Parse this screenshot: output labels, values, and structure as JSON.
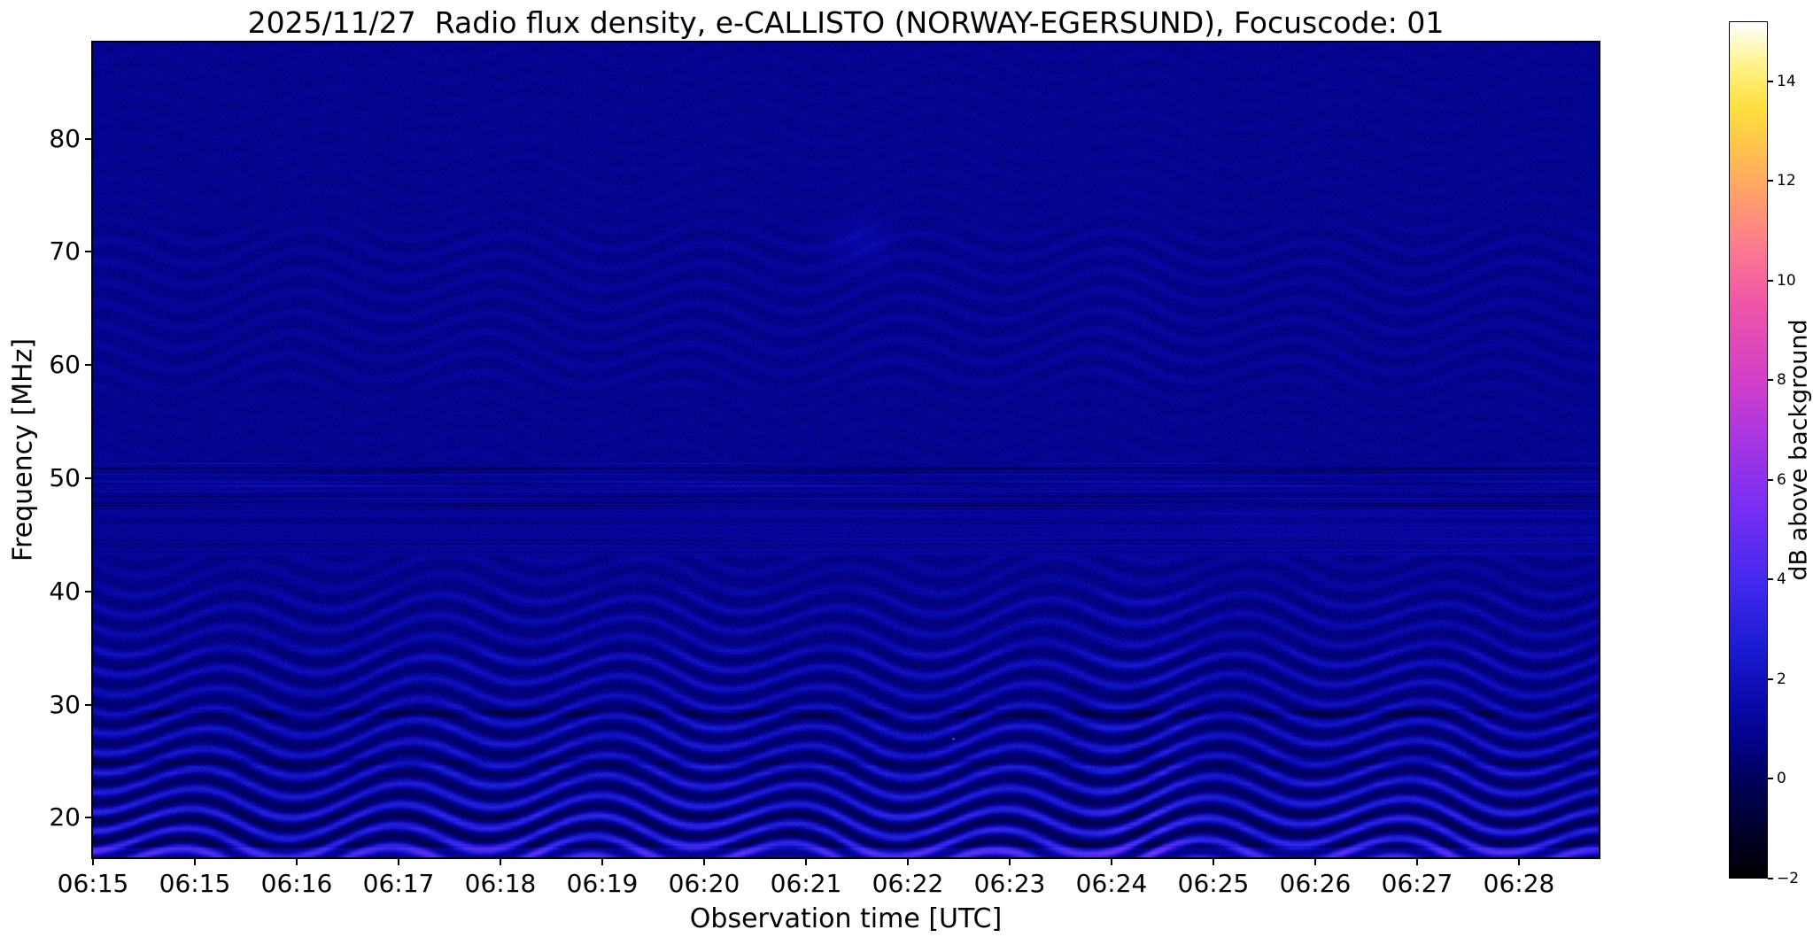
{
  "figure": {
    "background": "#ffffff"
  },
  "chart_data": {
    "type": "heatmap",
    "title": "2025/11/27  Radio flux density, e-CALLISTO (NORWAY-EGERSUND), Focuscode: 01",
    "xlabel": "Observation time [UTC]",
    "ylabel": "Frequency [MHz]",
    "x_ticks": [
      "06:15",
      "06:15",
      "06:16",
      "06:17",
      "06:18",
      "06:19",
      "06:20",
      "06:21",
      "06:22",
      "06:23",
      "06:24",
      "06:25",
      "06:26",
      "06:27",
      "06:28"
    ],
    "y_ticks": [
      20,
      30,
      40,
      50,
      60,
      70,
      80
    ],
    "freq_range_mhz": [
      16.5,
      88.5
    ],
    "x_range_estimate": [
      "06:15",
      "06:29"
    ],
    "grid": false,
    "legend": null,
    "colorbar": {
      "label": "dB above background",
      "ticks": [
        -2,
        0,
        2,
        4,
        6,
        8,
        10,
        12,
        14
      ],
      "range_db": [
        -2,
        15.2
      ],
      "position": "right"
    },
    "colormap": {
      "name": "gnuplot2-like (black-blue-violet-magenta-pink-orange-yellow-white)",
      "stops": [
        {
          "t": 0.0,
          "c": "#000000"
        },
        {
          "t": 0.05,
          "c": "#000028"
        },
        {
          "t": 0.1,
          "c": "#00004e"
        },
        {
          "t": 0.15,
          "c": "#020280"
        },
        {
          "t": 0.2,
          "c": "#0808a8"
        },
        {
          "t": 0.27,
          "c": "#1b1bd4"
        },
        {
          "t": 0.35,
          "c": "#4629f0"
        },
        {
          "t": 0.44,
          "c": "#7c2ff2"
        },
        {
          "t": 0.52,
          "c": "#ad36e0"
        },
        {
          "t": 0.58,
          "c": "#d23ec8"
        },
        {
          "t": 0.67,
          "c": "#ee55a8"
        },
        {
          "t": 0.73,
          "c": "#fb7693"
        },
        {
          "t": 0.79,
          "c": "#ff9a6e"
        },
        {
          "t": 0.85,
          "c": "#ffc14e"
        },
        {
          "t": 0.9,
          "c": "#ffdf3e"
        },
        {
          "t": 0.95,
          "c": "#fff288"
        },
        {
          "t": 1.0,
          "c": "#ffffff"
        }
      ]
    },
    "features": [
      {
        "name": "background-level",
        "value_db": 0.9,
        "description": "Nearly uniform dark navy-blue background around 0-1 dB over the whole spectrogram"
      },
      {
        "name": "interference-ripples",
        "freq_range_mhz": [
          16.5,
          40
        ],
        "peak_db": 3.3,
        "description": "Bright blue wavy fringe / moire pattern, strongest below ~25 MHz and fading toward 40 MHz; faint ripples also between ~58 and 72 MHz"
      },
      {
        "name": "rfi-streak-band",
        "freq_range_mhz": [
          43,
          51.5
        ],
        "description": "Horizontal streaky band with alternating darker (near-black) and brighter blue rows, dark line near 50 MHz"
      },
      {
        "name": "dark-lines",
        "freq_mhz": [
          25,
          29.2
        ],
        "description": "Thin darker horizontal lines near 25 and 29 MHz"
      },
      {
        "name": "high-contrast-column",
        "time": "~06:24-06:25",
        "description": "Vertical region of enhanced ripple contrast with narrow dark columns below ~32 MHz"
      },
      {
        "name": "point-burst",
        "time": "~06:22.7",
        "frequency_mhz": 27,
        "peak_db": 9,
        "description": "Single isolated pink/magenta pixel event"
      },
      {
        "name": "faint-blob",
        "time": "~06:21.5",
        "frequency_mhz": 71,
        "peak_db": 1.5,
        "description": "Very faint brighter smudge near 71 MHz"
      }
    ]
  }
}
